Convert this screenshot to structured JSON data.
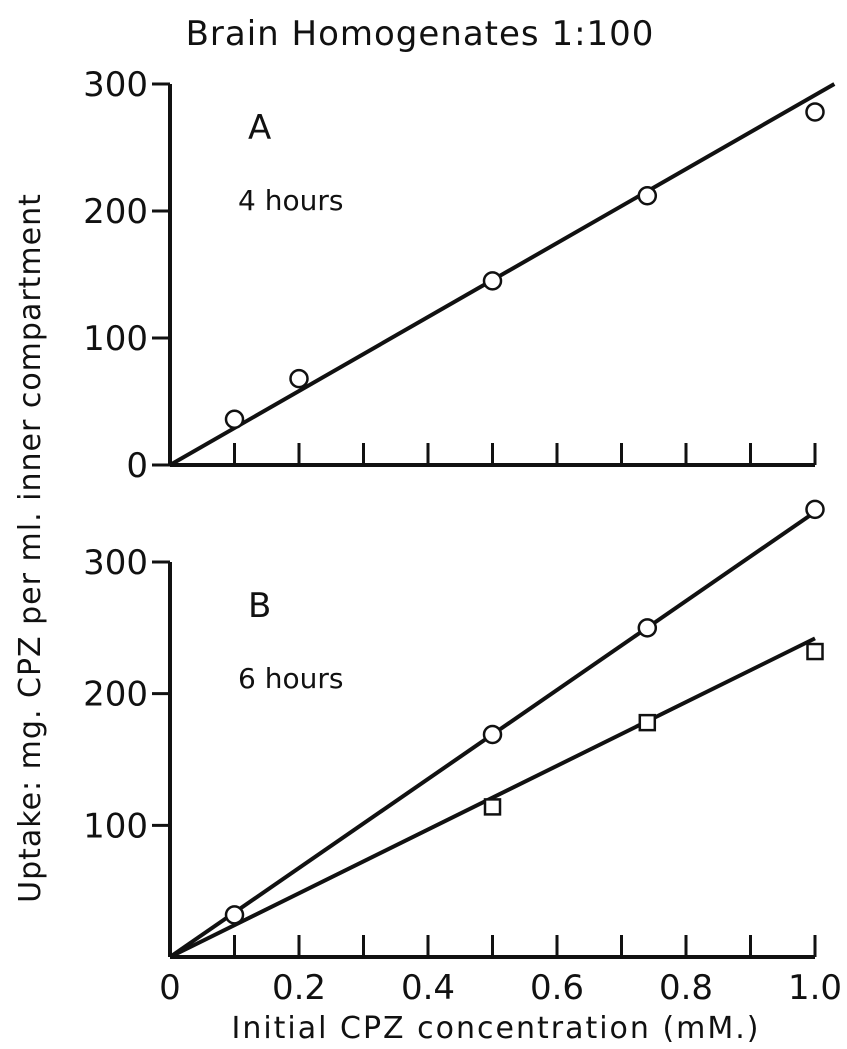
{
  "title": "Brain Homogenates 1:100",
  "ylabel": "Uptake: mg. CPZ per ml. inner compartment",
  "xlabel": "Initial CPZ concentration (mM.)",
  "colors": {
    "ink": "#111111",
    "background": "#ffffff"
  },
  "chart_data": [
    {
      "type": "scatter",
      "panel": "A",
      "annotation": "4 hours",
      "xlim": [
        0,
        1.0
      ],
      "ylim": [
        0,
        300
      ],
      "y_ticks": [
        0,
        100,
        200,
        300
      ],
      "y_tick_labels": [
        "0",
        "100",
        "200",
        "300"
      ],
      "x_ticks": [
        0.1,
        0.2,
        0.3,
        0.4,
        0.5,
        0.6,
        0.7,
        0.8,
        0.9,
        1.0
      ],
      "series": [
        {
          "marker": "circle",
          "x": [
            0.1,
            0.2,
            0.5,
            0.74,
            1.0
          ],
          "y": [
            36,
            68,
            145,
            212,
            278
          ],
          "fit_line": {
            "x": [
              0,
              1.03
            ],
            "y": [
              0,
              300
            ]
          }
        }
      ]
    },
    {
      "type": "scatter",
      "panel": "B",
      "annotation": "6 hours",
      "xlim": [
        0,
        1.0
      ],
      "ylim": [
        0,
        300
      ],
      "y_ticks": [
        100,
        200,
        300
      ],
      "y_tick_labels": [
        "100",
        "200",
        "300"
      ],
      "x_ticks": [
        0.1,
        0.2,
        0.3,
        0.4,
        0.5,
        0.6,
        0.7,
        0.8,
        0.9,
        1.0
      ],
      "x_tick_labels": [
        "0",
        "0.2",
        "0.4",
        "0.6",
        "0.8",
        "1.0"
      ],
      "x_tick_label_values": [
        0,
        0.2,
        0.4,
        0.6,
        0.8,
        1.0
      ],
      "series": [
        {
          "marker": "circle",
          "x": [
            0.1,
            0.5,
            0.74,
            1.0
          ],
          "y": [
            32,
            169,
            250,
            340
          ],
          "fit_line": {
            "x": [
              0,
              1.0
            ],
            "y": [
              0,
              338
            ]
          }
        },
        {
          "marker": "square",
          "x": [
            0.5,
            0.74,
            1.0
          ],
          "y": [
            114,
            178,
            232
          ],
          "fit_line": {
            "x": [
              0,
              1.0
            ],
            "y": [
              0,
              242
            ]
          }
        }
      ]
    }
  ]
}
